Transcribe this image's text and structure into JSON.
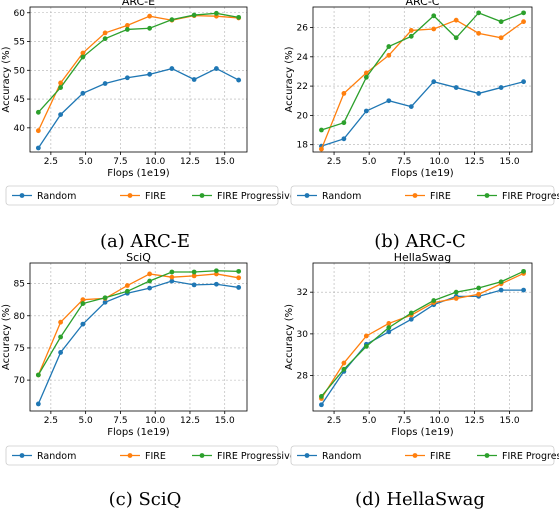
{
  "colors": {
    "Random": "#1f77b4",
    "FIRE": "#ff7f0e",
    "FIRE Progressive": "#2ca02c"
  },
  "chart_data": [
    {
      "type": "line",
      "title": "ARC-E",
      "caption": "(a) ARC-E",
      "xlabel": "Flops (1e19)",
      "ylabel": "Accuracy (%)",
      "x": [
        1.6,
        3.2,
        4.8,
        6.4,
        8.0,
        9.6,
        11.2,
        12.8,
        14.4,
        16.0
      ],
      "xticks": [
        "2.5",
        "5.0",
        "7.5",
        "10.0",
        "12.5",
        "15.0"
      ],
      "xtick_values": [
        2.5,
        5.0,
        7.5,
        10.0,
        12.5,
        15.0
      ],
      "xlim": [
        1.0,
        16.6
      ],
      "ylim": [
        35.8,
        61.0
      ],
      "yticks": [
        "40",
        "45",
        "50",
        "55",
        "60"
      ],
      "ytick_values": [
        40,
        45,
        50,
        55,
        60
      ],
      "grid": true,
      "legend": "bottom",
      "series": [
        {
          "name": "Random",
          "values": [
            36.5,
            42.3,
            46.0,
            47.7,
            48.7,
            49.3,
            50.3,
            48.4,
            50.3,
            48.3
          ]
        },
        {
          "name": "FIRE",
          "values": [
            39.5,
            47.8,
            53.0,
            56.5,
            57.8,
            59.4,
            58.7,
            59.5,
            59.4,
            59.1
          ]
        },
        {
          "name": "FIRE Progressive",
          "values": [
            42.7,
            47.0,
            52.3,
            55.5,
            57.1,
            57.3,
            58.8,
            59.6,
            59.9,
            59.2
          ]
        }
      ]
    },
    {
      "type": "line",
      "title": "ARC-C",
      "caption": "(b) ARC-C",
      "xlabel": "Flops (1e19)",
      "ylabel": "Accuracy (%)",
      "x": [
        1.6,
        3.2,
        4.8,
        6.4,
        8.0,
        9.6,
        11.2,
        12.8,
        14.4,
        16.0
      ],
      "xticks": [
        "2.5",
        "5.0",
        "7.5",
        "10.0",
        "12.5",
        "15.0"
      ],
      "xtick_values": [
        2.5,
        5.0,
        7.5,
        10.0,
        12.5,
        15.0
      ],
      "xlim": [
        1.0,
        16.6
      ],
      "ylim": [
        17.5,
        27.4
      ],
      "yticks": [
        "18",
        "20",
        "22",
        "24",
        "26"
      ],
      "ytick_values": [
        18,
        20,
        22,
        24,
        26
      ],
      "grid": true,
      "legend": "bottom",
      "series": [
        {
          "name": "Random",
          "values": [
            17.9,
            18.4,
            20.3,
            21.0,
            20.6,
            22.3,
            21.9,
            21.5,
            21.9,
            22.3
          ]
        },
        {
          "name": "FIRE",
          "values": [
            17.7,
            21.5,
            22.9,
            24.1,
            25.8,
            25.9,
            26.5,
            25.6,
            25.3,
            26.4
          ]
        },
        {
          "name": "FIRE Progressive",
          "values": [
            19.0,
            19.5,
            22.6,
            24.7,
            25.4,
            26.8,
            25.3,
            27.0,
            26.4,
            27.0
          ]
        }
      ]
    },
    {
      "type": "line",
      "title": "SciQ",
      "caption": "(c) SciQ",
      "xlabel": "Flops (1e19)",
      "ylabel": "Accuracy (%)",
      "x": [
        1.6,
        3.2,
        4.8,
        6.4,
        8.0,
        9.6,
        11.2,
        12.8,
        14.4,
        16.0
      ],
      "xticks": [
        "2.5",
        "5.0",
        "7.5",
        "10.0",
        "12.5",
        "15.0"
      ],
      "xtick_values": [
        2.5,
        5.0,
        7.5,
        10.0,
        12.5,
        15.0
      ],
      "xlim": [
        1.0,
        16.6
      ],
      "ylim": [
        65.2,
        88.2
      ],
      "yticks": [
        "70",
        "75",
        "80",
        "85"
      ],
      "ytick_values": [
        70,
        75,
        80,
        85
      ],
      "grid": true,
      "legend": "bottom",
      "series": [
        {
          "name": "Random",
          "values": [
            66.3,
            74.3,
            78.7,
            82.1,
            83.5,
            84.3,
            85.4,
            84.8,
            84.9,
            84.4
          ]
        },
        {
          "name": "FIRE",
          "values": [
            70.8,
            79.0,
            82.5,
            82.7,
            84.7,
            86.5,
            86.0,
            86.2,
            86.5,
            85.9
          ]
        },
        {
          "name": "FIRE Progressive",
          "values": [
            70.8,
            76.7,
            81.9,
            82.8,
            83.8,
            85.4,
            86.8,
            86.8,
            87.0,
            86.9
          ]
        }
      ]
    },
    {
      "type": "line",
      "title": "HellaSwag",
      "caption": "(d) HellaSwag",
      "xlabel": "Flops (1e19)",
      "ylabel": "Accuracy (%)",
      "x": [
        1.6,
        3.2,
        4.8,
        6.4,
        8.0,
        9.6,
        11.2,
        12.8,
        14.4,
        16.0
      ],
      "xticks": [
        "2.5",
        "5.0",
        "7.5",
        "10.0",
        "12.5",
        "15.0"
      ],
      "xtick_values": [
        2.5,
        5.0,
        7.5,
        10.0,
        12.5,
        15.0
      ],
      "xlim": [
        1.0,
        16.6
      ],
      "ylim": [
        26.3,
        33.4
      ],
      "yticks": [
        "28",
        "30",
        "32"
      ],
      "ytick_values": [
        28,
        30,
        32
      ],
      "grid": true,
      "legend": "bottom",
      "series": [
        {
          "name": "Random",
          "values": [
            26.6,
            28.2,
            29.5,
            30.1,
            30.7,
            31.4,
            31.8,
            31.8,
            32.1,
            32.1
          ]
        },
        {
          "name": "FIRE",
          "values": [
            26.9,
            28.6,
            29.9,
            30.5,
            30.9,
            31.5,
            31.7,
            31.9,
            32.4,
            32.9
          ]
        },
        {
          "name": "FIRE Progressive",
          "values": [
            27.0,
            28.3,
            29.4,
            30.3,
            31.0,
            31.6,
            32.0,
            32.2,
            32.5,
            33.0
          ]
        }
      ]
    }
  ]
}
